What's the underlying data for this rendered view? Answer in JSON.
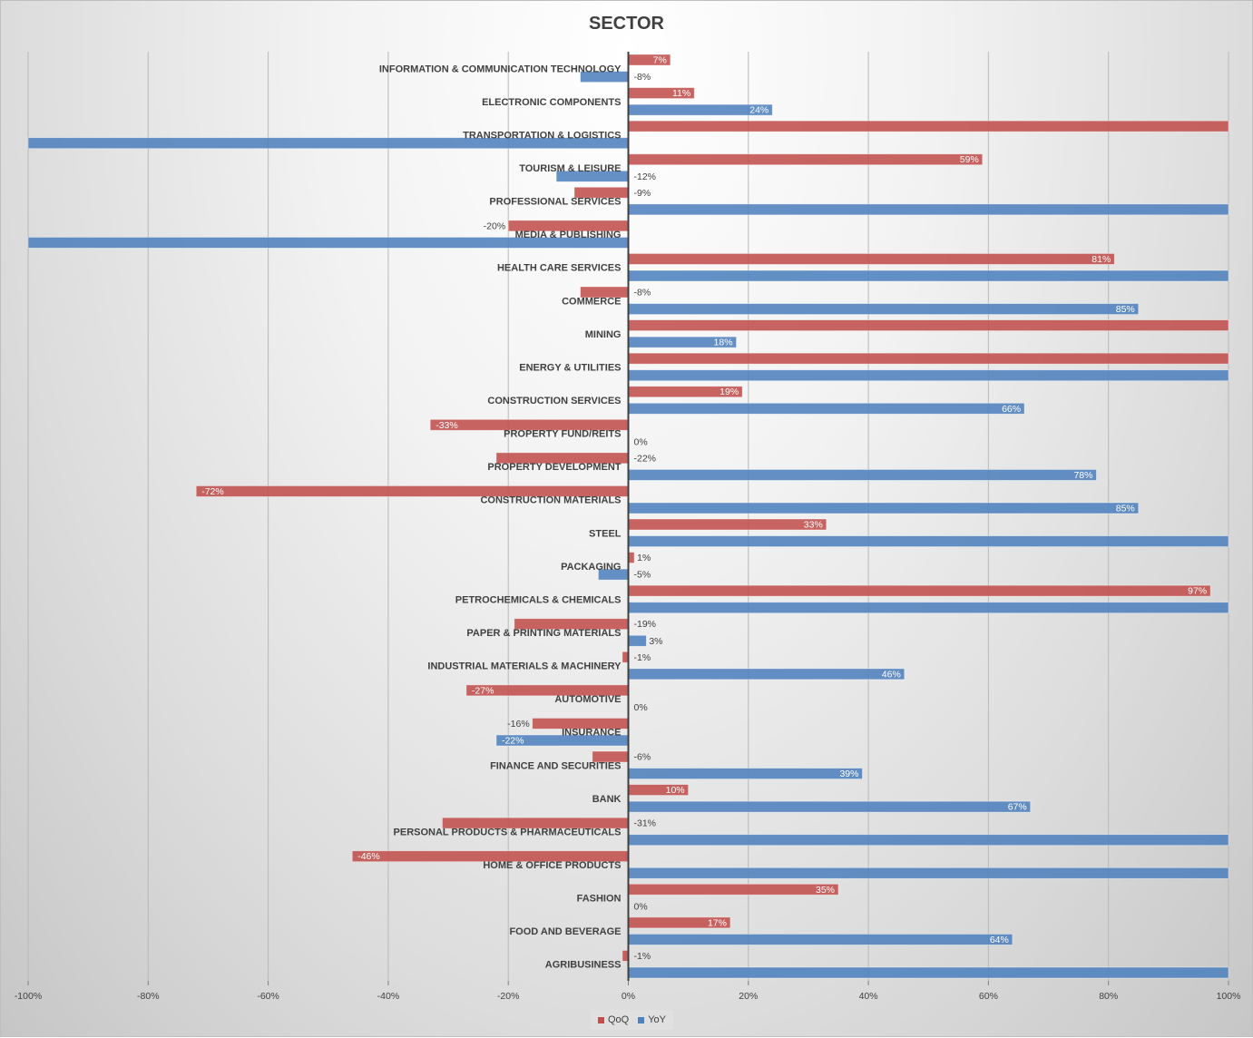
{
  "chart_data": {
    "type": "bar",
    "orientation": "horizontal",
    "title": "SECTOR",
    "xlabel": "",
    "ylabel": "",
    "xlim": [
      -100,
      100
    ],
    "x_ticks": [
      "-100%",
      "-80%",
      "-60%",
      "-40%",
      "-20%",
      "0%",
      "20%",
      "40%",
      "60%",
      "80%",
      "100%"
    ],
    "grid": true,
    "legend_position": "bottom",
    "categories": [
      "INFORMATION & COMMUNICATION  TECHNOLOGY",
      "ELECTRONIC COMPONENTS",
      "TRANSPORTATION & LOGISTICS",
      "TOURISM & LEISURE",
      "PROFESSIONAL SERVICES",
      "MEDIA & PUBLISHING",
      "HEALTH CARE SERVICES",
      "COMMERCE",
      "MINING",
      "ENERGY & UTILITIES",
      "CONSTRUCTION SERVICES",
      "PROPERTY FUND/REITS",
      "PROPERTY DEVELOPMENT",
      "CONSTRUCTION MATERIALS",
      "STEEL",
      "PACKAGING",
      "PETROCHEMICALS & CHEMICALS",
      "PAPER & PRINTING MATERIALS",
      "INDUSTRIAL MATERIALS & MACHINERY",
      "AUTOMOTIVE",
      "INSURANCE",
      "FINANCE AND SECURITIES",
      "BANK",
      "PERSONAL PRODUCTS & PHARMACEUTICALS",
      "HOME & OFFICE PRODUCTS",
      "FASHION",
      "FOOD AND BEVERAGE",
      "AGRIBUSINESS"
    ],
    "series": [
      {
        "name": "QoQ",
        "color": "#c0504d",
        "values": [
          7,
          11,
          100,
          59,
          -9,
          -20,
          81,
          -8,
          100,
          100,
          19,
          -33,
          -22,
          -72,
          33,
          1,
          97,
          -19,
          -1,
          -27,
          -16,
          -6,
          10,
          -31,
          -46,
          35,
          17,
          -1
        ],
        "labels": [
          "7%",
          "11%",
          "",
          "59%",
          "-9%",
          "-20%",
          "81%",
          "-8%",
          "",
          "",
          "19%",
          "-33%",
          "-22%",
          "-72%",
          "33%",
          "1%",
          "97%",
          "-19%",
          "-1%",
          "-27%",
          "-16%",
          "-6%",
          "10%",
          "-31%",
          "-46%",
          "35%",
          "17%",
          "-1%"
        ]
      },
      {
        "name": "YoY",
        "color": "#4f81bd",
        "values": [
          -8,
          24,
          -100,
          -12,
          100,
          -100,
          100,
          85,
          18,
          100,
          66,
          0,
          78,
          85,
          100,
          -5,
          100,
          3,
          46,
          0,
          -22,
          39,
          67,
          100,
          100,
          0,
          64,
          100
        ],
        "labels": [
          "-8%",
          "24%",
          "",
          "-12%",
          "",
          "",
          "",
          "85%",
          "18%",
          "",
          "66%",
          "0%",
          "78%",
          "85%",
          "",
          "-5%",
          "",
          "3%",
          "46%",
          "0%",
          "-22%",
          "39%",
          "67%",
          "",
          "",
          "0%",
          "64%",
          ""
        ]
      }
    ]
  }
}
